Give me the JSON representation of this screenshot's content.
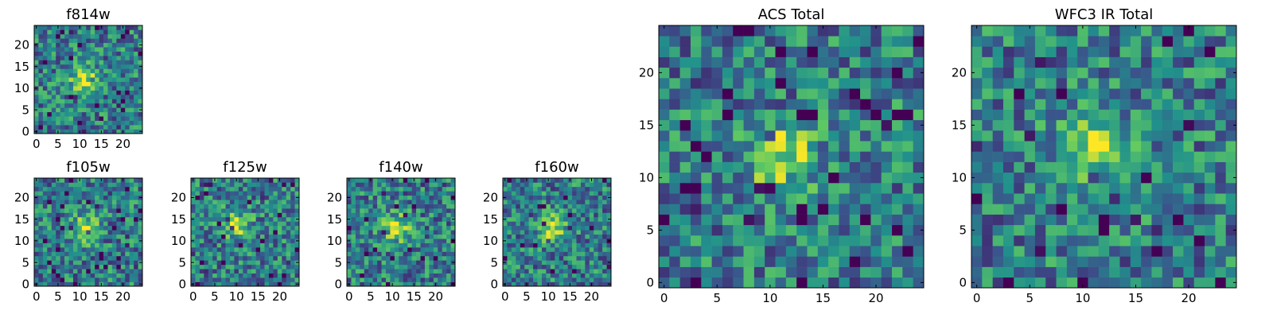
{
  "figure": {
    "panels": [
      {
        "id": "f814w",
        "title": "f814w"
      },
      {
        "id": "f105w",
        "title": "f105w"
      },
      {
        "id": "f125w",
        "title": "f125w"
      },
      {
        "id": "f140w",
        "title": "f140w"
      },
      {
        "id": "f160w",
        "title": "f160w"
      },
      {
        "id": "acs_total",
        "title": "ACS Total"
      },
      {
        "id": "wfc3_ir_total",
        "title": "WFC3 IR Total"
      }
    ]
  },
  "colormap": [
    "#440154",
    "#3b528b",
    "#21918c",
    "#5ec962",
    "#fde725"
  ],
  "chart_data": [
    {
      "type": "heatmap",
      "title": "f814w",
      "grid": [
        25,
        25
      ],
      "xlim": [
        0,
        24
      ],
      "ylim": [
        0,
        24
      ],
      "xticks": [
        0,
        5,
        10,
        15,
        20
      ],
      "yticks": [
        0,
        5,
        10,
        15,
        20
      ],
      "peak": [
        11,
        12
      ],
      "seed": 11,
      "grid_lines": false
    },
    {
      "type": "heatmap",
      "title": "f105w",
      "grid": [
        25,
        25
      ],
      "xlim": [
        0,
        24
      ],
      "ylim": [
        0,
        24
      ],
      "xticks": [
        0,
        5,
        10,
        15,
        20
      ],
      "yticks": [
        0,
        5,
        10,
        15,
        20
      ],
      "peak": [
        11,
        13
      ],
      "seed": 23,
      "grid_lines": false
    },
    {
      "type": "heatmap",
      "title": "f125w",
      "grid": [
        25,
        25
      ],
      "xlim": [
        0,
        24
      ],
      "ylim": [
        0,
        24
      ],
      "xticks": [
        0,
        5,
        10,
        15,
        20
      ],
      "yticks": [
        0,
        5,
        10,
        15,
        20
      ],
      "peak": [
        10,
        14
      ],
      "seed": 37,
      "grid_lines": false
    },
    {
      "type": "heatmap",
      "title": "f140w",
      "grid": [
        25,
        25
      ],
      "xlim": [
        0,
        24
      ],
      "ylim": [
        0,
        24
      ],
      "xticks": [
        0,
        5,
        10,
        15,
        20
      ],
      "yticks": [
        0,
        5,
        10,
        15,
        20
      ],
      "peak": [
        11,
        13
      ],
      "seed": 41,
      "grid_lines": false
    },
    {
      "type": "heatmap",
      "title": "f160w",
      "grid": [
        25,
        25
      ],
      "xlim": [
        0,
        24
      ],
      "ylim": [
        0,
        24
      ],
      "xticks": [
        0,
        5,
        10,
        15,
        20
      ],
      "yticks": [
        0,
        5,
        10,
        15,
        20
      ],
      "peak": [
        11,
        13
      ],
      "seed": 53,
      "grid_lines": false
    },
    {
      "type": "heatmap",
      "title": "ACS Total",
      "grid": [
        25,
        25
      ],
      "xlim": [
        0,
        24
      ],
      "ylim": [
        0,
        24
      ],
      "xticks": [
        0,
        5,
        10,
        15,
        20
      ],
      "yticks": [
        0,
        5,
        10,
        15,
        20
      ],
      "peak": [
        11,
        12
      ],
      "seed": 67,
      "grid_lines": false
    },
    {
      "type": "heatmap",
      "title": "WFC3 IR Total",
      "grid": [
        25,
        25
      ],
      "xlim": [
        0,
        24
      ],
      "ylim": [
        0,
        24
      ],
      "xticks": [
        0,
        5,
        10,
        15,
        20
      ],
      "yticks": [
        0,
        5,
        10,
        15,
        20
      ],
      "peak": [
        11,
        13
      ],
      "seed": 79,
      "grid_lines": false
    }
  ]
}
